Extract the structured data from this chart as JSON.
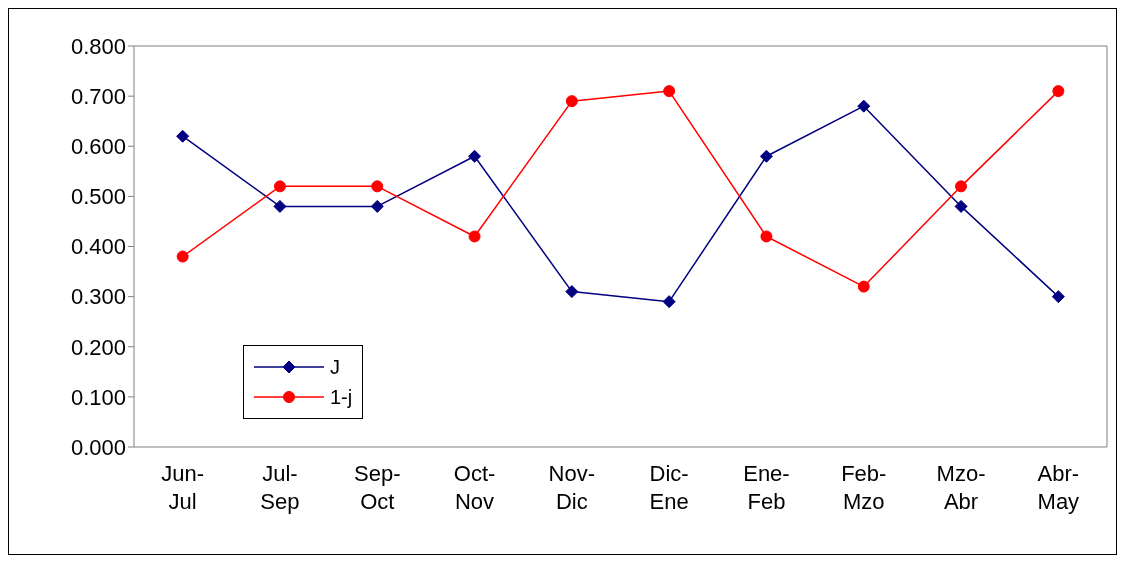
{
  "chart_data": {
    "type": "line",
    "categories": [
      "Jun-Jul",
      "Jul-Sep",
      "Sep-Oct",
      "Oct-Nov",
      "Nov-Dic",
      "Dic-Ene",
      "Ene-Feb",
      "Feb-Mzo",
      "Mzo-Abr",
      "Abr-May"
    ],
    "series": [
      {
        "name": "J",
        "color": "#000080",
        "marker": "diamond",
        "values": [
          0.62,
          0.48,
          0.48,
          0.58,
          0.31,
          0.29,
          0.58,
          0.68,
          0.48,
          0.3
        ]
      },
      {
        "name": "1-j",
        "color": "#ff0000",
        "marker": "circle",
        "values": [
          0.38,
          0.52,
          0.52,
          0.42,
          0.69,
          0.71,
          0.42,
          0.32,
          0.52,
          0.71
        ]
      }
    ],
    "ylim": [
      0,
      0.8
    ],
    "yticks": [
      {
        "value": 0,
        "label": "0.000"
      },
      {
        "value": 0.1,
        "label": "0.100"
      },
      {
        "value": 0.2,
        "label": "0.200"
      },
      {
        "value": 0.3,
        "label": "0.300"
      },
      {
        "value": 0.4,
        "label": "0.400"
      },
      {
        "value": 0.5,
        "label": "0.500"
      },
      {
        "value": 0.6,
        "label": "0.600"
      },
      {
        "value": 0.7,
        "label": "0.700"
      },
      {
        "value": 0.8,
        "label": "0.800"
      }
    ],
    "grid": false,
    "legend": "bottom left",
    "line_style": "solid"
  }
}
